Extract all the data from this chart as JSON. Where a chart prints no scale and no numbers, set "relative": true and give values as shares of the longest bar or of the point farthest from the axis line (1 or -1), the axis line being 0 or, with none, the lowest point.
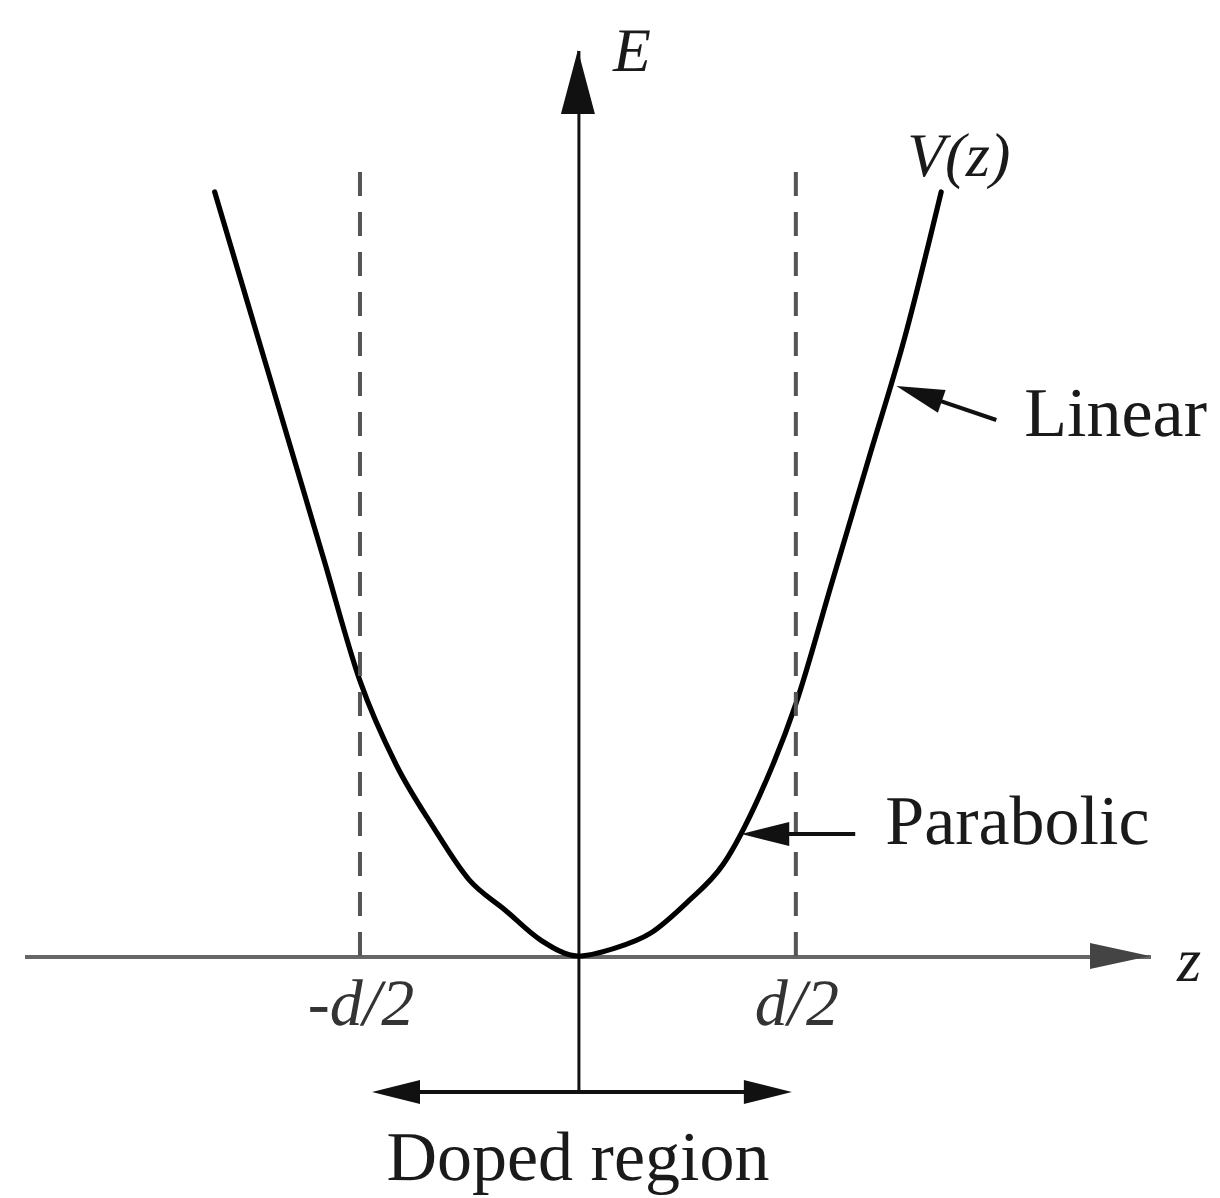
{
  "chart_data": {
    "type": "line",
    "relative": true,
    "xlabel": "z",
    "ylabel": "E",
    "categories": [
      null,
      null,
      null,
      null,
      "-d/2",
      null,
      null,
      null,
      null,
      null,
      null,
      null,
      null,
      null,
      null,
      null,
      "d/2",
      null,
      null,
      null,
      null
    ],
    "series": [
      {
        "name": "V(z)",
        "color": "#000000",
        "values": [
          1,
          0.84,
          0.68,
          0.52,
          0.36,
          0.25,
          0.17,
          0.1,
          0.06,
          0.02,
          0,
          0.01,
          0.03,
          0.07,
          0.12,
          0.21,
          0.33,
          0.49,
          0.65,
          0.81,
          1
        ]
      }
    ],
    "ref_lines": [
      {
        "axis": "x",
        "value": "-d/2",
        "color": "#555555",
        "line_style": "dashed"
      },
      {
        "axis": "x",
        "value": "d/2",
        "color": "#555555",
        "line_style": "dashed"
      }
    ],
    "annotations": [
      "Linear",
      "Parabolic",
      "Doped region"
    ]
  }
}
